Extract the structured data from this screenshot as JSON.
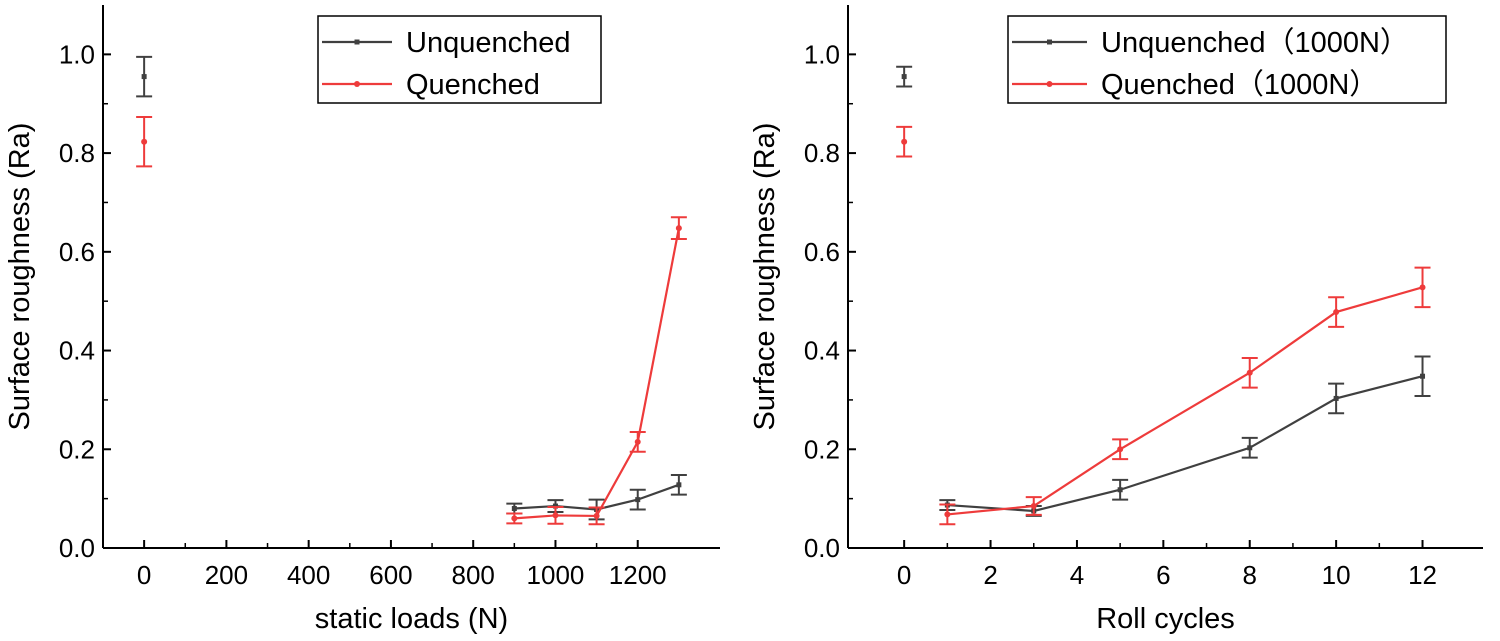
{
  "chart_data": [
    {
      "type": "line",
      "xlabel": "static loads (N)",
      "ylabel": "Surface roughness (Ra)",
      "xlim": [
        -100,
        1400
      ],
      "ylim": [
        0,
        1.1
      ],
      "xticks": [
        0,
        200,
        400,
        600,
        800,
        1000,
        1200
      ],
      "xtick_labels": [
        "0",
        "200",
        "400",
        "600",
        "800",
        "1000",
        "1200"
      ],
      "yticks": [
        0,
        0.2,
        0.4,
        0.6,
        0.8,
        1.0
      ],
      "ytick_labels": [
        "0.0",
        "0.2",
        "0.4",
        "0.6",
        "0.8",
        "1.0"
      ],
      "legend_position": "top-right",
      "series": [
        {
          "name": "Unquenched",
          "color": "#404040",
          "marker": "square",
          "isolated_points": [
            {
              "x": 0,
              "y": 0.955,
              "err": 0.04
            }
          ],
          "x": [
            900,
            1000,
            1100,
            1200,
            1300
          ],
          "y": [
            0.08,
            0.085,
            0.078,
            0.098,
            0.128
          ],
          "err": [
            0.01,
            0.012,
            0.02,
            0.02,
            0.02
          ]
        },
        {
          "name": "Quenched",
          "color": "#ee3b3b",
          "marker": "circle",
          "isolated_points": [
            {
              "x": 0,
              "y": 0.823,
              "err": 0.05
            }
          ],
          "x": [
            900,
            1000,
            1100,
            1200,
            1300
          ],
          "y": [
            0.06,
            0.066,
            0.065,
            0.215,
            0.648
          ],
          "err": [
            0.01,
            0.017,
            0.017,
            0.02,
            0.022
          ]
        }
      ]
    },
    {
      "type": "line",
      "xlabel": "Roll cycles",
      "ylabel": "Surface roughness (Ra)",
      "xlim": [
        -1.3,
        13.4
      ],
      "ylim": [
        0,
        1.1
      ],
      "xticks": [
        0,
        2,
        4,
        6,
        8,
        10,
        12
      ],
      "xtick_labels": [
        "0",
        "2",
        "4",
        "6",
        "8",
        "10",
        "12"
      ],
      "yticks": [
        0,
        0.2,
        0.4,
        0.6,
        0.8,
        1.0
      ],
      "ytick_labels": [
        "0.0",
        "0.2",
        "0.4",
        "0.6",
        "0.8",
        "1.0"
      ],
      "legend_position": "top-right",
      "series": [
        {
          "name": "Unquenched（1000N）",
          "color": "#404040",
          "marker": "square",
          "isolated_points": [
            {
              "x": 0,
              "y": 0.955,
              "err": 0.02
            }
          ],
          "x": [
            1,
            3,
            5,
            8,
            10,
            12
          ],
          "y": [
            0.087,
            0.075,
            0.118,
            0.203,
            0.303,
            0.348
          ],
          "err": [
            0.01,
            0.01,
            0.02,
            0.02,
            0.03,
            0.04
          ]
        },
        {
          "name": "Quenched（1000N）",
          "color": "#ee3b3b",
          "marker": "circle",
          "isolated_points": [
            {
              "x": 0,
              "y": 0.823,
              "err": 0.03
            }
          ],
          "x": [
            1,
            3,
            5,
            8,
            10,
            12
          ],
          "y": [
            0.068,
            0.085,
            0.2,
            0.355,
            0.478,
            0.528
          ],
          "err": [
            0.02,
            0.018,
            0.02,
            0.03,
            0.03,
            0.04
          ]
        }
      ]
    }
  ]
}
